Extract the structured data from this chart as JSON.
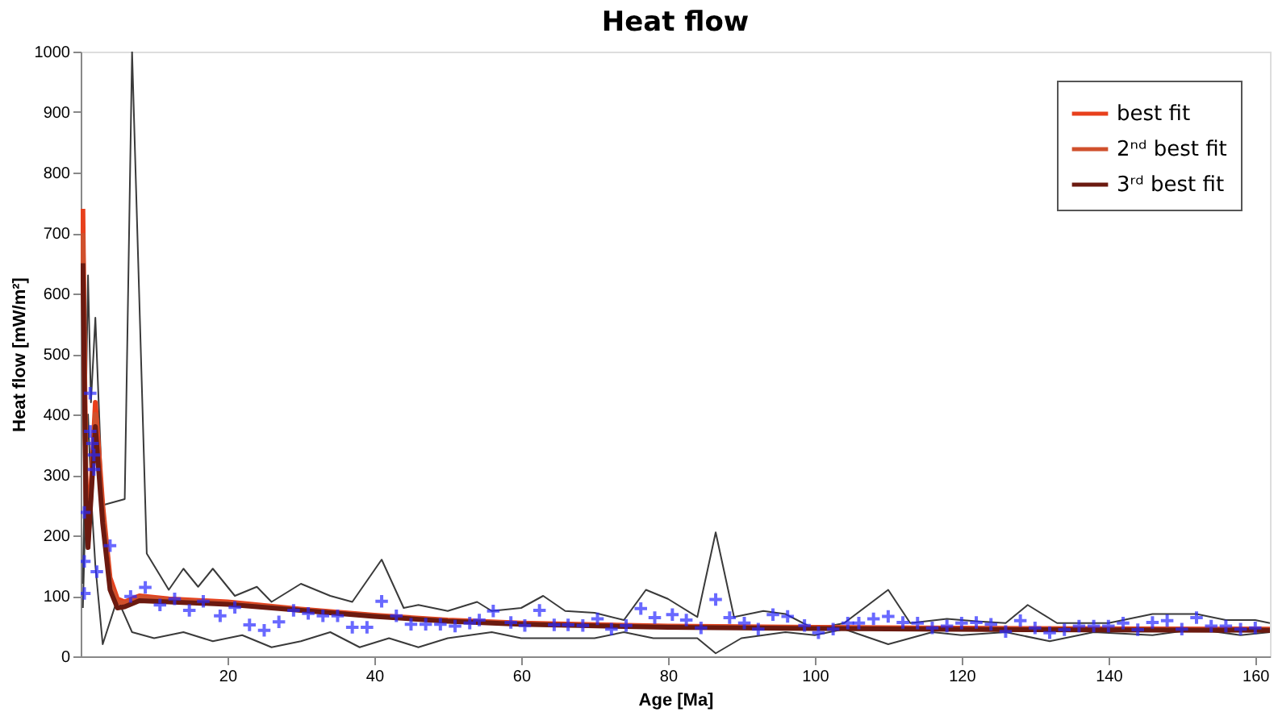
{
  "chart_data": {
    "type": "line",
    "title": "Heat flow",
    "xlabel": "Age [Ma]",
    "ylabel": "Heat flow [mW/m²]",
    "xlim": [
      0,
      162
    ],
    "ylim": [
      0,
      1000
    ],
    "xticks": [
      20,
      40,
      60,
      80,
      100,
      120,
      140,
      160
    ],
    "yticks": [
      0,
      100,
      200,
      300,
      400,
      500,
      600,
      700,
      800,
      900,
      {
        "value": 1000,
        "label": "1000"
      }
    ],
    "grid": false,
    "legend": "top right",
    "line_style": "solid",
    "series": [
      {
        "type": "line",
        "color": "#3a3a3a",
        "x": [
          0.3,
          1,
          1.4,
          2,
          3,
          6,
          7,
          9,
          12,
          14,
          16,
          18,
          21,
          24,
          26,
          30,
          34,
          37,
          41,
          44,
          46,
          50,
          54,
          56,
          60,
          63,
          66,
          70,
          74,
          77,
          80,
          84,
          86.5,
          89,
          93,
          96,
          100,
          104,
          110,
          113,
          118,
          122,
          126,
          129,
          133,
          140,
          146,
          152,
          156,
          160,
          162
        ],
        "values": [
          120,
          630,
          420,
          560,
          250,
          260,
          1000,
          170,
          110,
          145,
          115,
          145,
          100,
          115,
          90,
          120,
          100,
          90,
          160,
          80,
          85,
          75,
          90,
          75,
          80,
          100,
          75,
          72,
          60,
          110,
          95,
          65,
          205,
          65,
          75,
          70,
          45,
          55,
          110,
          55,
          62,
          58,
          55,
          85,
          55,
          55,
          70,
          70,
          60,
          60,
          55
        ]
      },
      {
        "type": "line",
        "color": "#3a3a3a",
        "x": [
          0.3,
          1,
          1.5,
          2,
          3,
          5,
          7,
          10,
          14,
          18,
          22,
          26,
          30,
          34,
          38,
          42,
          46,
          50,
          56,
          60,
          66,
          70,
          74,
          78,
          84,
          86.5,
          90,
          96,
          100,
          104,
          110,
          116,
          120,
          126,
          132,
          138,
          146,
          152,
          158,
          162
        ],
        "values": [
          80,
          400,
          250,
          150,
          20,
          95,
          40,
          30,
          40,
          25,
          35,
          15,
          25,
          40,
          15,
          30,
          15,
          30,
          40,
          30,
          30,
          30,
          40,
          30,
          30,
          5,
          30,
          40,
          35,
          45,
          20,
          40,
          35,
          40,
          25,
          40,
          35,
          45,
          35,
          40
        ]
      },
      {
        "type": "line",
        "name": "best fit",
        "color": "#e8401c",
        "x": [
          0.3,
          0.7,
          1,
          1.5,
          2,
          3,
          4,
          5,
          6,
          8,
          12,
          20,
          30,
          40,
          50,
          60,
          80,
          100,
          130,
          162
        ],
        "values": [
          740,
          300,
          200,
          300,
          420,
          250,
          130,
          95,
          90,
          100,
          95,
          90,
          78,
          68,
          60,
          55,
          50,
          48,
          46,
          45
        ]
      },
      {
        "type": "line",
        "name": "2ⁿᵈ best fit",
        "color": "#d0502c",
        "x": [
          0.3,
          0.7,
          1,
          1.5,
          2,
          3,
          4,
          5,
          6,
          8,
          12,
          20,
          30,
          40,
          50,
          60,
          80,
          100,
          130,
          162
        ],
        "values": [
          700,
          280,
          190,
          290,
          400,
          240,
          120,
          90,
          88,
          98,
          93,
          88,
          77,
          67,
          59,
          54,
          49,
          47,
          45,
          44
        ]
      },
      {
        "type": "line",
        "name": "3ʳᵈ best fit",
        "color": "#6b1a10",
        "x": [
          0.3,
          0.7,
          1,
          1.5,
          2,
          3,
          4,
          5,
          6,
          8,
          12,
          20,
          30,
          40,
          50,
          60,
          80,
          100,
          130,
          162
        ],
        "values": [
          650,
          260,
          180,
          280,
          380,
          220,
          110,
          80,
          82,
          92,
          90,
          86,
          76,
          66,
          58,
          53,
          48,
          46,
          44,
          43
        ]
      },
      {
        "type": "scatter",
        "color": "#2a2aff",
        "marker": "cross",
        "x": [
          0.5,
          0.5,
          0.5,
          1.3,
          1.3,
          1.6,
          1.8,
          1.8,
          2.2,
          4,
          6.8,
          8.8,
          10.8,
          12.8,
          14.8,
          16.7,
          19,
          21,
          23,
          25,
          27,
          29,
          31,
          33,
          35,
          37,
          39,
          41,
          43,
          45,
          47,
          49,
          51,
          53,
          54.3,
          56.2,
          58.6,
          60.5,
          62.5,
          64.5,
          66.4,
          68.4,
          70.4,
          72.3,
          74.3,
          76.3,
          78.2,
          80.6,
          82.5,
          84.5,
          86.5,
          88.4,
          90.4,
          92.3,
          94.3,
          96.3,
          98.6,
          100.5,
          102.5,
          104.5,
          106,
          108,
          110,
          112,
          114,
          116,
          118,
          120,
          122,
          124,
          126,
          128,
          130,
          132,
          134,
          136,
          138,
          140,
          142,
          144,
          146,
          148,
          150,
          152,
          154,
          156,
          158,
          160
        ],
        "values": [
          104,
          157,
          238,
          435,
          372,
          352,
          333,
          309,
          140,
          183,
          99,
          114,
          85,
          95,
          76,
          91,
          67,
          81,
          52,
          43,
          57,
          76,
          71,
          67,
          67,
          48,
          48,
          91,
          67,
          53,
          53,
          53,
          50,
          55,
          60,
          75,
          56,
          51,
          76,
          52,
          52,
          51,
          62,
          45,
          51,
          79,
          64,
          69,
          60,
          47,
          94,
          64,
          55,
          45,
          69,
          66,
          51,
          39,
          45,
          55,
          55,
          62,
          66,
          56,
          55,
          47,
          50,
          55,
          56,
          53,
          41,
          59,
          47,
          39,
          44,
          50,
          50,
          50,
          55,
          44,
          56,
          59,
          45,
          64,
          50,
          50,
          45,
          47
        ]
      }
    ]
  }
}
